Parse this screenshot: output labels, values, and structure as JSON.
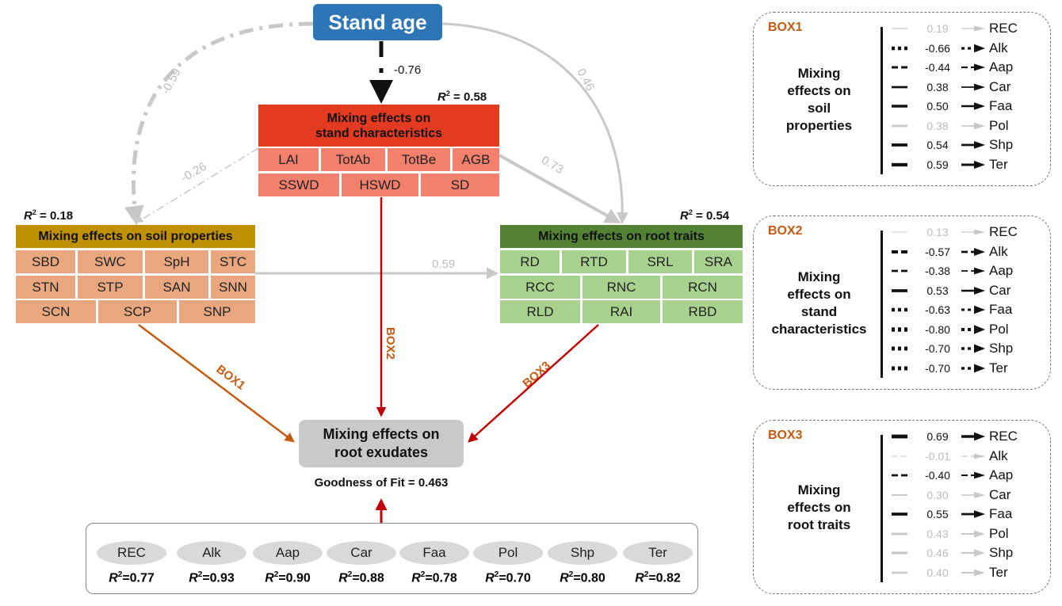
{
  "stand_age": {
    "label": "Stand age",
    "color": "#2E75B6"
  },
  "paths": {
    "age_to_stand": "-0.76",
    "age_to_soil": "-0.59",
    "age_to_root": "0.46",
    "stand_to_soil": "-0.26",
    "stand_to_root": "0.73",
    "soil_to_root": "0.59",
    "soil_to_exudates": "BOX1",
    "stand_to_exudates": "BOX2",
    "root_to_exudates": "BOX3"
  },
  "stand": {
    "title_line1": "Mixing effects on",
    "title_line2": "stand characteristics",
    "r2_label": "R",
    "r2_value": " = 0.58",
    "row1": [
      "LAI",
      "TotAb",
      "TotBe",
      "AGB"
    ],
    "row2": [
      "SSWD",
      "HSWD",
      "SD"
    ],
    "header_color": "#E23B22",
    "cell_color": "#F3806C"
  },
  "soil": {
    "title": "Mixing effects on soil properties",
    "r2_label": "R",
    "r2_value": " = 0.18",
    "row1": [
      "SBD",
      "SWC",
      "SpH",
      "STC"
    ],
    "row2": [
      "STN",
      "STP",
      "SAN",
      "SNN"
    ],
    "row3": [
      "SCN",
      "SCP",
      "SNP"
    ],
    "header_color": "#BF9000",
    "cell_color": "#E8A77E"
  },
  "root": {
    "title": "Mixing effects on root traits",
    "r2_label": "R",
    "r2_value": " = 0.54",
    "row1": [
      "RD",
      "RTD",
      "SRL",
      "SRA"
    ],
    "row2": [
      "RCC",
      "RNC",
      "RCN"
    ],
    "row3": [
      "RLD",
      "RAI",
      "RBD"
    ],
    "header_color": "#548235",
    "cell_color": "#A9D18E"
  },
  "exudates": {
    "line1": "Mixing effects on",
    "line2": "root exudates",
    "goodness": "Goodness of Fit = 0.463"
  },
  "components": [
    {
      "name": "REC",
      "r2": "=0.77"
    },
    {
      "name": "Alk",
      "r2": "=0.93"
    },
    {
      "name": "Aap",
      "r2": "=0.90"
    },
    {
      "name": "Car",
      "r2": "=0.88"
    },
    {
      "name": "Faa",
      "r2": "=0.78"
    },
    {
      "name": "Pol",
      "r2": "=0.70"
    },
    {
      "name": "Shp",
      "r2": "=0.80"
    },
    {
      "name": "Ter",
      "r2": "=0.82"
    }
  ],
  "boxes": [
    {
      "title": "BOX1",
      "desc": [
        "Mixing",
        "effects on",
        "soil",
        "properties"
      ],
      "rows": [
        {
          "value": "0.19",
          "name": "REC",
          "significant": false,
          "style": "solid"
        },
        {
          "value": "-0.66",
          "name": "Alk",
          "significant": true,
          "style": "dot"
        },
        {
          "value": "-0.44",
          "name": "Aap",
          "significant": true,
          "style": "dash"
        },
        {
          "value": "0.38",
          "name": "Car",
          "significant": true,
          "style": "solid"
        },
        {
          "value": "0.50",
          "name": "Faa",
          "significant": true,
          "style": "solid"
        },
        {
          "value": "0.38",
          "name": "Pol",
          "significant": false,
          "style": "solid"
        },
        {
          "value": "0.54",
          "name": "Shp",
          "significant": true,
          "style": "solid"
        },
        {
          "value": "0.59",
          "name": "Ter",
          "significant": true,
          "style": "solid"
        }
      ]
    },
    {
      "title": "BOX2",
      "desc": [
        "Mixing",
        "effects on",
        "stand",
        "characteristics"
      ],
      "rows": [
        {
          "value": "0.13",
          "name": "REC",
          "significant": false,
          "style": "solid"
        },
        {
          "value": "-0.57",
          "name": "Alk",
          "significant": true,
          "style": "dash"
        },
        {
          "value": "-0.38",
          "name": "Aap",
          "significant": true,
          "style": "dash"
        },
        {
          "value": "0.53",
          "name": "Car",
          "significant": true,
          "style": "solid"
        },
        {
          "value": "-0.63",
          "name": "Faa",
          "significant": true,
          "style": "dot"
        },
        {
          "value": "-0.80",
          "name": "Pol",
          "significant": true,
          "style": "dot"
        },
        {
          "value": "-0.70",
          "name": "Shp",
          "significant": true,
          "style": "dot"
        },
        {
          "value": "-0.70",
          "name": "Ter",
          "significant": true,
          "style": "dot"
        }
      ]
    },
    {
      "title": "BOX3",
      "desc": [
        "Mixing",
        "effects on",
        "root traits"
      ],
      "rows": [
        {
          "value": "0.69",
          "name": "REC",
          "significant": true,
          "style": "solid"
        },
        {
          "value": "-0.01",
          "name": "Alk",
          "significant": false,
          "style": "dash"
        },
        {
          "value": "-0.40",
          "name": "Aap",
          "significant": true,
          "style": "dash"
        },
        {
          "value": "0.30",
          "name": "Car",
          "significant": false,
          "style": "solid"
        },
        {
          "value": "0.55",
          "name": "Faa",
          "significant": true,
          "style": "solid"
        },
        {
          "value": "0.43",
          "name": "Pol",
          "significant": false,
          "style": "solid"
        },
        {
          "value": "0.46",
          "name": "Shp",
          "significant": false,
          "style": "solid"
        },
        {
          "value": "0.40",
          "name": "Ter",
          "significant": false,
          "style": "solid"
        }
      ]
    }
  ],
  "colors": {
    "box_label": "#C55A11",
    "red_path": "#C00000",
    "gray_path": "#C8C8C8",
    "orange_path": "#C55A11"
  }
}
